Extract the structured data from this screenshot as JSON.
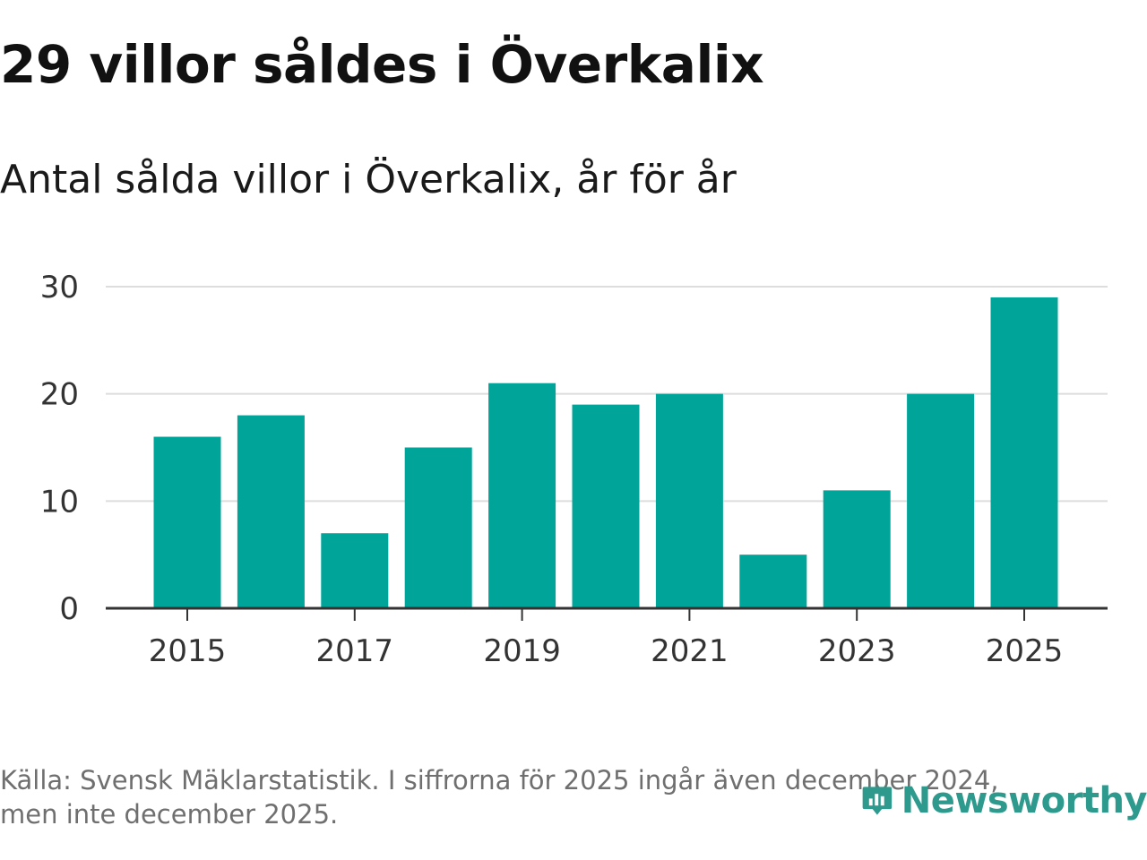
{
  "title": "29 villor såldes i Överkalix",
  "subtitle": "Antal sålda villor i Överkalix, år för år",
  "footer": {
    "line1": "Källa: Svensk Mäklarstatistik. I siffrorna för 2025 ingår även december 2024,",
    "line2": "men inte december 2025."
  },
  "logo": {
    "text": "Newsworthy",
    "icon": "newsworthy-logo-icon"
  },
  "colors": {
    "bar": "#00a499",
    "grid": "#dddddd",
    "axis": "#333333",
    "text": "#333333",
    "logo": "#2e9a8e"
  },
  "chart_data": {
    "type": "bar",
    "title": "Antal sålda villor i Överkalix, år för år",
    "xlabel": "",
    "ylabel": "",
    "categories": [
      "2015",
      "2016",
      "2017",
      "2018",
      "2019",
      "2020",
      "2021",
      "2022",
      "2023",
      "2024",
      "2025"
    ],
    "values": [
      16,
      18,
      7,
      15,
      21,
      19,
      20,
      5,
      11,
      20,
      29
    ],
    "x_tick_labels": [
      "2015",
      "2017",
      "2019",
      "2021",
      "2023",
      "2025"
    ],
    "yticks": [
      0,
      10,
      20,
      30
    ],
    "ylim": [
      0,
      30
    ],
    "grid": true
  }
}
